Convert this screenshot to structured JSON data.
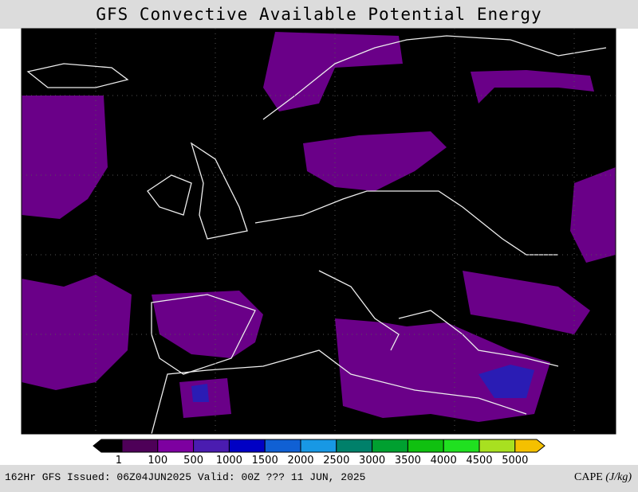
{
  "header": {
    "title": "GFS Convective Available Potential Energy"
  },
  "legend": {
    "colors": [
      "#000000",
      "#4e0058",
      "#7d00a0",
      "#4a1cb0",
      "#0000c4",
      "#1060d4",
      "#1898e4",
      "#00806a",
      "#00a030",
      "#10c010",
      "#20e020",
      "#a8e020",
      "#f4c000"
    ],
    "labels": [
      1,
      100,
      500,
      1000,
      1500,
      2000,
      2500,
      3000,
      3500,
      4000,
      4500,
      5000
    ]
  },
  "footer": {
    "left": "162Hr GFS Issued: 06Z04JUN2025 Valid: 00Z ??? 11 JUN, 2025",
    "quantity": "CAPE",
    "units": "(J/kg)"
  }
}
